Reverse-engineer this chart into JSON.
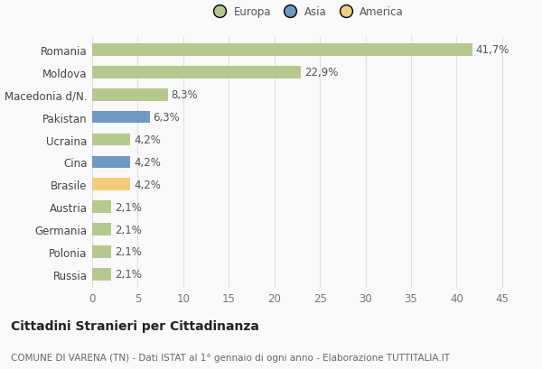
{
  "categories": [
    "Romania",
    "Moldova",
    "Macedonia d/N.",
    "Pakistan",
    "Ucraina",
    "Cina",
    "Brasile",
    "Austria",
    "Germania",
    "Polonia",
    "Russia"
  ],
  "values": [
    41.7,
    22.9,
    8.3,
    6.3,
    4.2,
    4.2,
    4.2,
    2.1,
    2.1,
    2.1,
    2.1
  ],
  "labels": [
    "41,7%",
    "22,9%",
    "8,3%",
    "6,3%",
    "4,2%",
    "4,2%",
    "4,2%",
    "2,1%",
    "2,1%",
    "2,1%",
    "2,1%"
  ],
  "colors": [
    "#b5c98e",
    "#b5c98e",
    "#b5c98e",
    "#7098c4",
    "#b5c98e",
    "#7098c4",
    "#f2cc78",
    "#b5c98e",
    "#b5c98e",
    "#b5c98e",
    "#b5c98e"
  ],
  "legend": [
    {
      "label": "Europa",
      "color": "#b5c98e"
    },
    {
      "label": "Asia",
      "color": "#7098c4"
    },
    {
      "label": "America",
      "color": "#f2cc78"
    }
  ],
  "xlim": [
    0,
    47
  ],
  "xticks": [
    0,
    5,
    10,
    15,
    20,
    25,
    30,
    35,
    40,
    45
  ],
  "title_bold": "Cittadini Stranieri per Cittadinanza",
  "subtitle": "COMUNE DI VARENA (TN) - Dati ISTAT al 1° gennaio di ogni anno - Elaborazione TUTTITALIA.IT",
  "background_color": "#f9f9f9",
  "grid_color": "#e0e0e0",
  "bar_height": 0.55,
  "label_fontsize": 8.5,
  "tick_fontsize": 8.5,
  "title_fontsize": 10,
  "subtitle_fontsize": 7.5
}
